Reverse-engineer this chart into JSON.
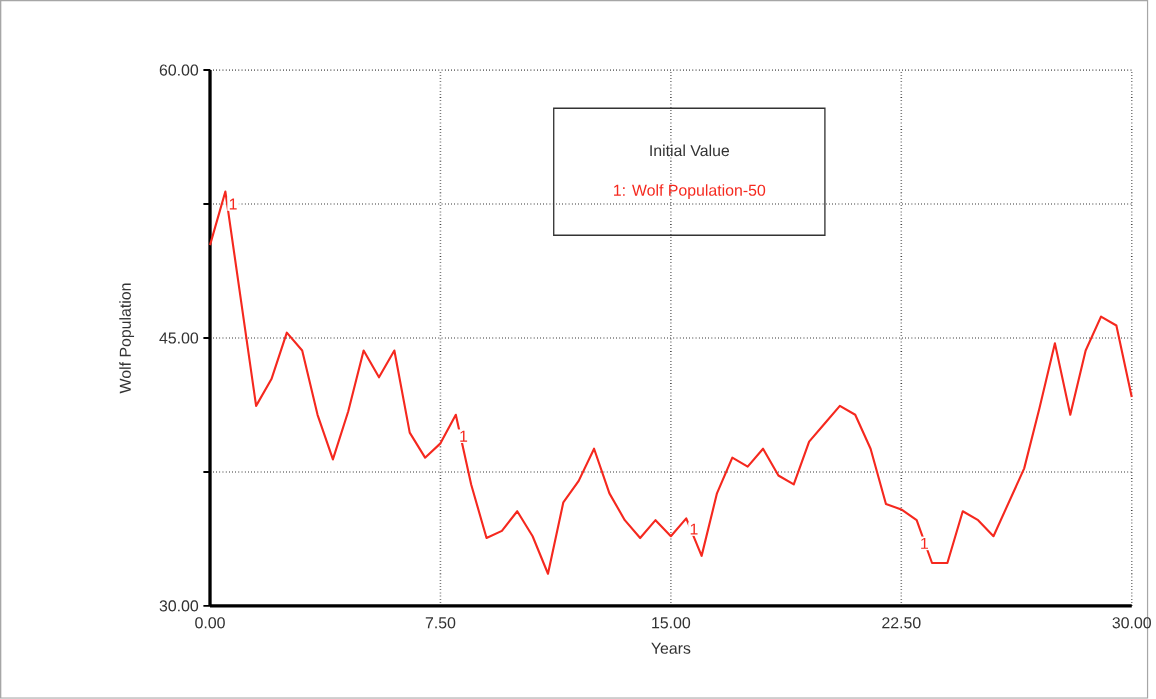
{
  "chart_data": {
    "type": "line",
    "xlabel": "Years",
    "ylabel": "Wolf Population",
    "legend_title": "Initial Value",
    "x": [
      0,
      0.5,
      1.5,
      2,
      2.5,
      3,
      3.5,
      4,
      4.5,
      5,
      5.5,
      6,
      6.5,
      7,
      7.5,
      8,
      8.5,
      9,
      9.5,
      10,
      10.5,
      11,
      11.5,
      12,
      12.5,
      13,
      13.5,
      14,
      14.5,
      15,
      15.5,
      16,
      16.5,
      17,
      17.5,
      18,
      18.5,
      19,
      19.5,
      20,
      20.5,
      21,
      21.5,
      22,
      22.5,
      23,
      23.5,
      24,
      24.5,
      25,
      25.5,
      26,
      26.5,
      27,
      27.5,
      28,
      28.5,
      29,
      29.5,
      30
    ],
    "series": [
      {
        "name": "1: Wolf Population-50",
        "color": "#f5281e",
        "values": [
          50.2,
          53.2,
          41.2,
          42.7,
          45.3,
          44.3,
          40.7,
          38.2,
          40.9,
          44.3,
          42.8,
          44.3,
          39.7,
          38.3,
          39.1,
          40.7,
          36.8,
          33.8,
          34.2,
          35.3,
          33.9,
          31.8,
          35.8,
          37.0,
          38.8,
          36.3,
          34.8,
          33.8,
          34.8,
          33.9,
          34.9,
          32.8,
          36.3,
          38.3,
          37.8,
          38.8,
          37.3,
          36.8,
          39.2,
          40.2,
          41.2,
          40.7,
          38.8,
          35.7,
          35.4,
          34.8,
          32.4,
          32.4,
          35.3,
          34.8,
          33.9,
          35.8,
          37.7,
          41.1,
          44.7,
          40.7,
          44.3,
          46.2,
          45.7,
          41.7
        ]
      }
    ],
    "xlim": [
      0,
      30
    ],
    "ylim": [
      30,
      60
    ],
    "xticks": [
      {
        "value": 0,
        "label": "0.00"
      },
      {
        "value": 7.5,
        "label": "7.50"
      },
      {
        "value": 15,
        "label": "15.00"
      },
      {
        "value": 22.5,
        "label": "22.50"
      },
      {
        "value": 30,
        "label": "30.00"
      }
    ],
    "yticks": [
      {
        "value": 30,
        "label": "30.00"
      },
      {
        "value": 37.5,
        "label": null
      },
      {
        "value": 45,
        "label": "45.00"
      },
      {
        "value": 52.5,
        "label": null
      },
      {
        "value": 60,
        "label": "60.00"
      }
    ],
    "grid": true,
    "legend": "top",
    "marker": "none",
    "line_style": "solid",
    "annotations": [
      {
        "text": "1",
        "x": 0.75,
        "y": 52.5
      },
      {
        "text": "1",
        "x": 8.25,
        "y": 39.5
      },
      {
        "text": "1",
        "x": 15.75,
        "y": 34.3
      },
      {
        "text": "1",
        "x": 23.25,
        "y": 33.5
      }
    ]
  }
}
